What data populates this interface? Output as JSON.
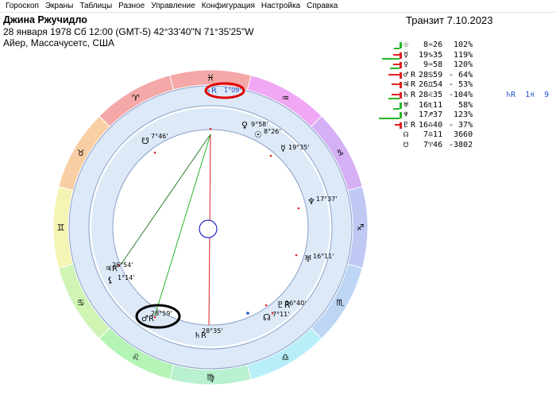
{
  "menu": [
    "Гороскоп",
    "Экраны",
    "Таблицы",
    "Разное",
    "Управление",
    "Конфигурация",
    "Настройка",
    "Справка"
  ],
  "header": {
    "name": "Джина Ржучидло",
    "line1": "28 января 1978  Сб  12:00 (GMT-5) 42°33'40\"N  71°35'25\"W",
    "line2": "Айер, Массачусетс, США"
  },
  "transit": "Транзит  7.10.2023",
  "colors": {
    "fire": "#f4a8a8",
    "earth": "#f8cfa4",
    "air": "#f8f8b4",
    "water": "#b4f4b4",
    "ring": "#dde9f7",
    "ring_line": "#8aa0c8",
    "line_red": "#e02020",
    "line_green": "#28b428",
    "line_dark_green": "#2f7a2f",
    "mark_red": "#e02020",
    "mark_blue": "#2050d0",
    "highlight_red": "#e00000",
    "highlight_black": "#000000"
  },
  "planets": [
    {
      "sym": "☉",
      "pos": " 8♒26",
      "pct": " 102%",
      "green": 7,
      "red": 0
    },
    {
      "sym": "☿",
      "pos": "19♑35",
      "pct": " 119%",
      "green": 22,
      "red": 8
    },
    {
      "sym": "♀",
      "pos": " 9♒58",
      "pct": " 120%",
      "green": 12,
      "red": 8
    },
    {
      "sym": "♂",
      "rx": "R",
      "pos": "28♋59",
      "pct": "- 64%",
      "green": 0,
      "red": 14
    },
    {
      "sym": "♃",
      "rx": "R",
      "pos": "26♊54",
      "pct": "- 53%",
      "green": 0,
      "red": 10
    },
    {
      "sym": "♄",
      "rx": "R",
      "pos": "28♌35",
      "pct": "-104%",
      "green": 14,
      "red": 10,
      "transit": "♄R  1♓  9"
    },
    {
      "sym": "♅",
      "pos": "16♏11",
      "pct": "  58%",
      "green": 8,
      "red": 0
    },
    {
      "sym": "♆",
      "pos": "17♐37",
      "pct": " 123%",
      "green": 26,
      "red": 0
    },
    {
      "sym": "♇",
      "rx": "R",
      "pos": "16♎40",
      "pct": "- 37%",
      "green": 0,
      "red": 6
    },
    {
      "sym": "☊",
      "pos": " 7♎11",
      "pct": " 3660",
      "green": 0,
      "red": 0
    },
    {
      "sym": "☋",
      "pos": " 7♈46",
      "pct": "-3802",
      "green": 0,
      "red": 0
    }
  ],
  "zodiac_signs": [
    "♓",
    "♒",
    "♑",
    "♐",
    "♏",
    "♎",
    "♍",
    "♌",
    "♋",
    "♊",
    "♉",
    "♈"
  ],
  "chart_planets": [
    {
      "sym": "♄R",
      "deg": "1°09'",
      "note": "transit"
    },
    {
      "sym": "♀",
      "deg": "9°58'"
    },
    {
      "sym": "☉",
      "deg": "8°26'"
    },
    {
      "sym": "☿",
      "deg": "19°35'"
    },
    {
      "sym": "☋",
      "deg": "7°46'"
    },
    {
      "sym": "♆",
      "deg": "17°37'"
    },
    {
      "sym": "♅",
      "deg": "16°11'"
    },
    {
      "sym": "♇R",
      "deg": "16°40'"
    },
    {
      "sym": "☊",
      "deg": "7°11'"
    },
    {
      "sym": "♄R",
      "deg": "28°35'"
    },
    {
      "sym": "♂R",
      "deg": "28°59'"
    },
    {
      "sym": "♃R",
      "deg": "26°54'"
    },
    {
      "sym": "⚸",
      "deg": "1°14'"
    }
  ]
}
